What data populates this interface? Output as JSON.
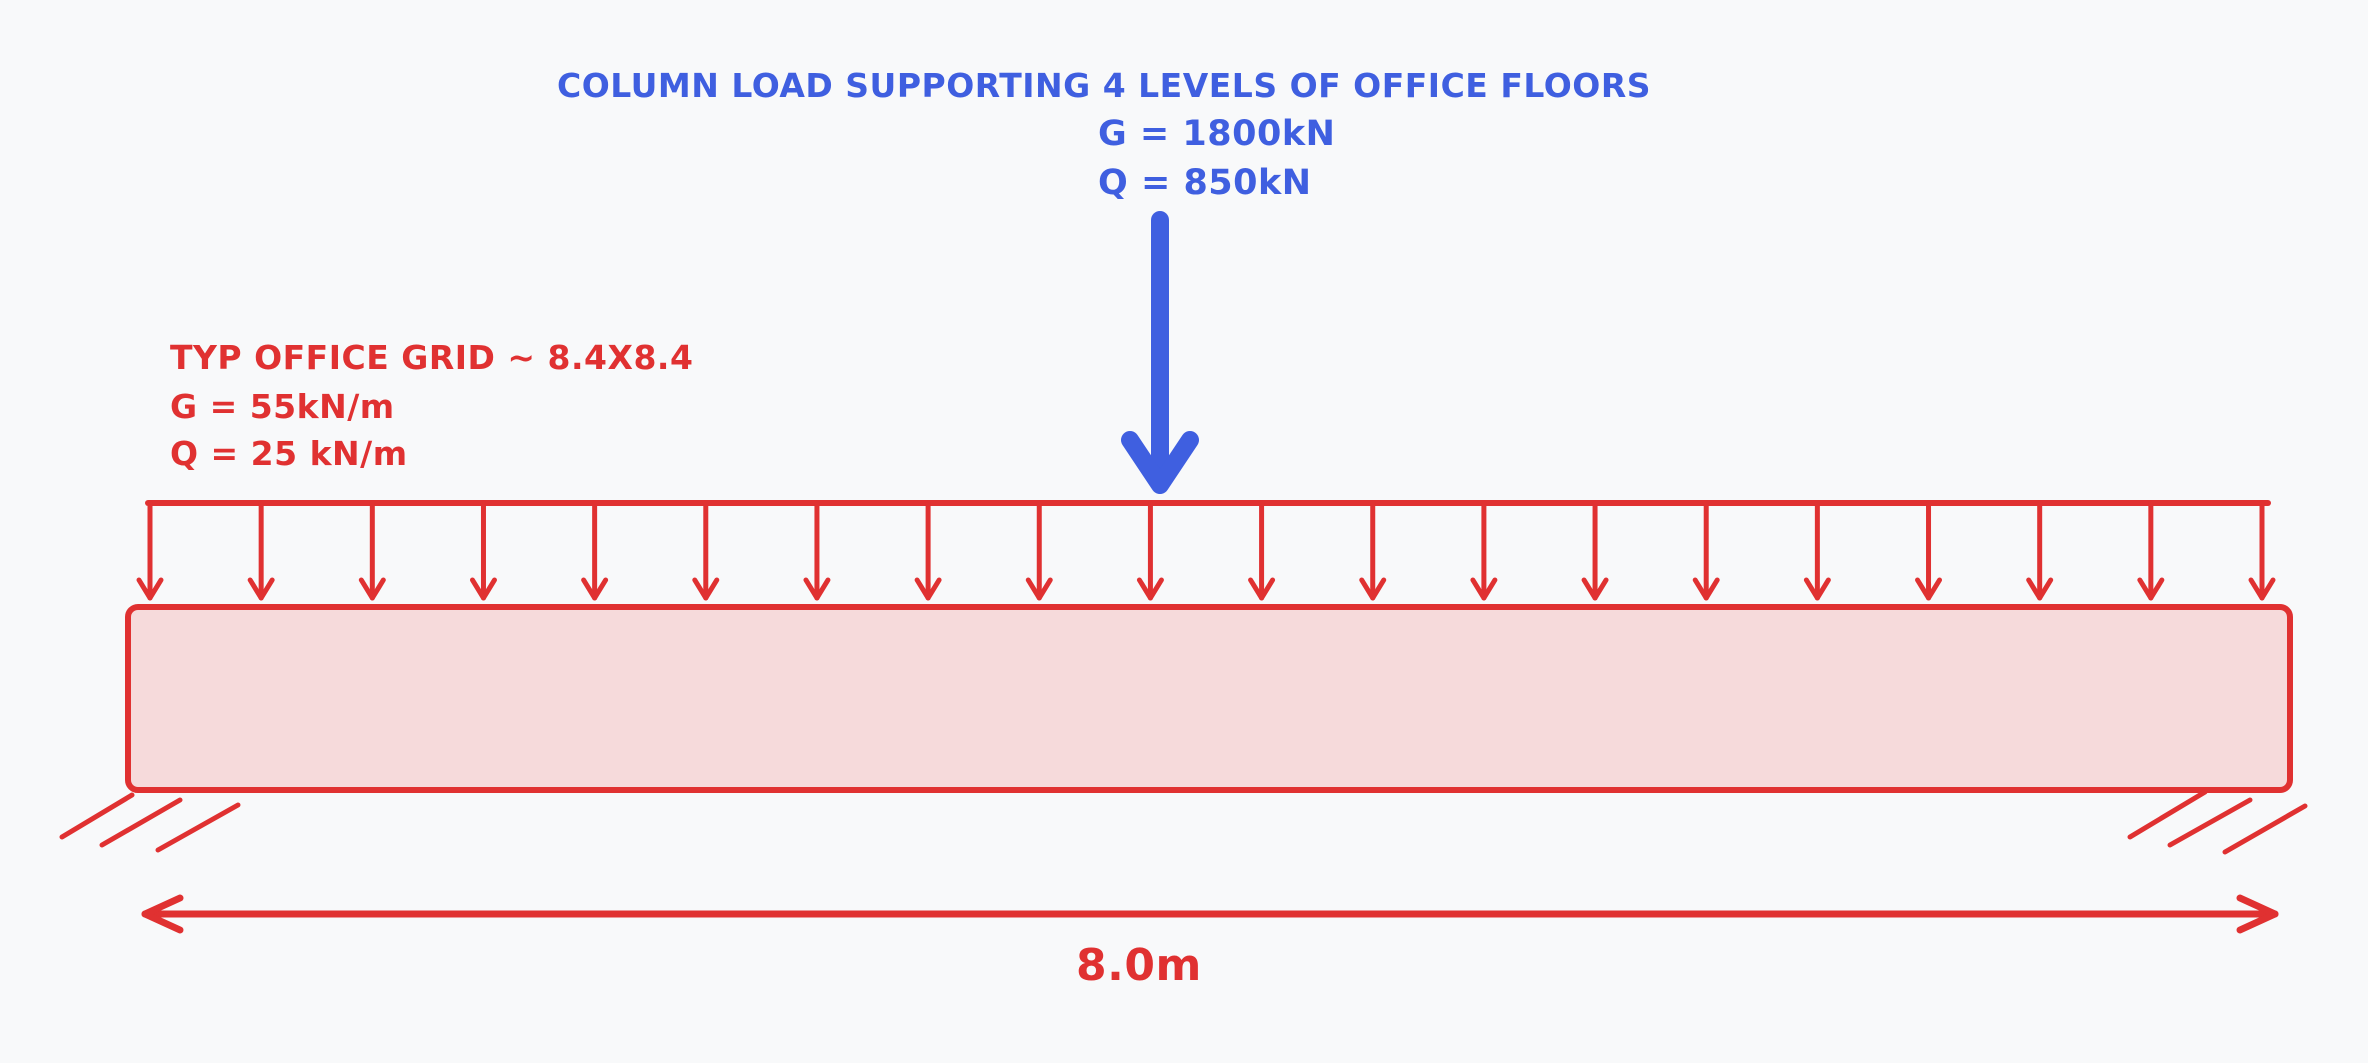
{
  "column_load": {
    "title": "COLUMN LOAD SUPPORTING 4 LEVELS OF OFFICE FLOORS",
    "g": "G = 1800kN",
    "q": "Q = 850kN",
    "color": "#3f5fe0"
  },
  "distributed_load": {
    "title": "TYP OFFICE GRID ~ 8.4X8.4",
    "g": "G = 55kN/m",
    "q": "Q = 25 kN/m",
    "color": "#e03131",
    "arrow_count": 20
  },
  "beam": {
    "stroke_color": "#e03131",
    "fill_color": "#f6dadb",
    "supports": [
      "fixed-left",
      "fixed-right"
    ]
  },
  "dimension": {
    "label": "8.0m"
  }
}
